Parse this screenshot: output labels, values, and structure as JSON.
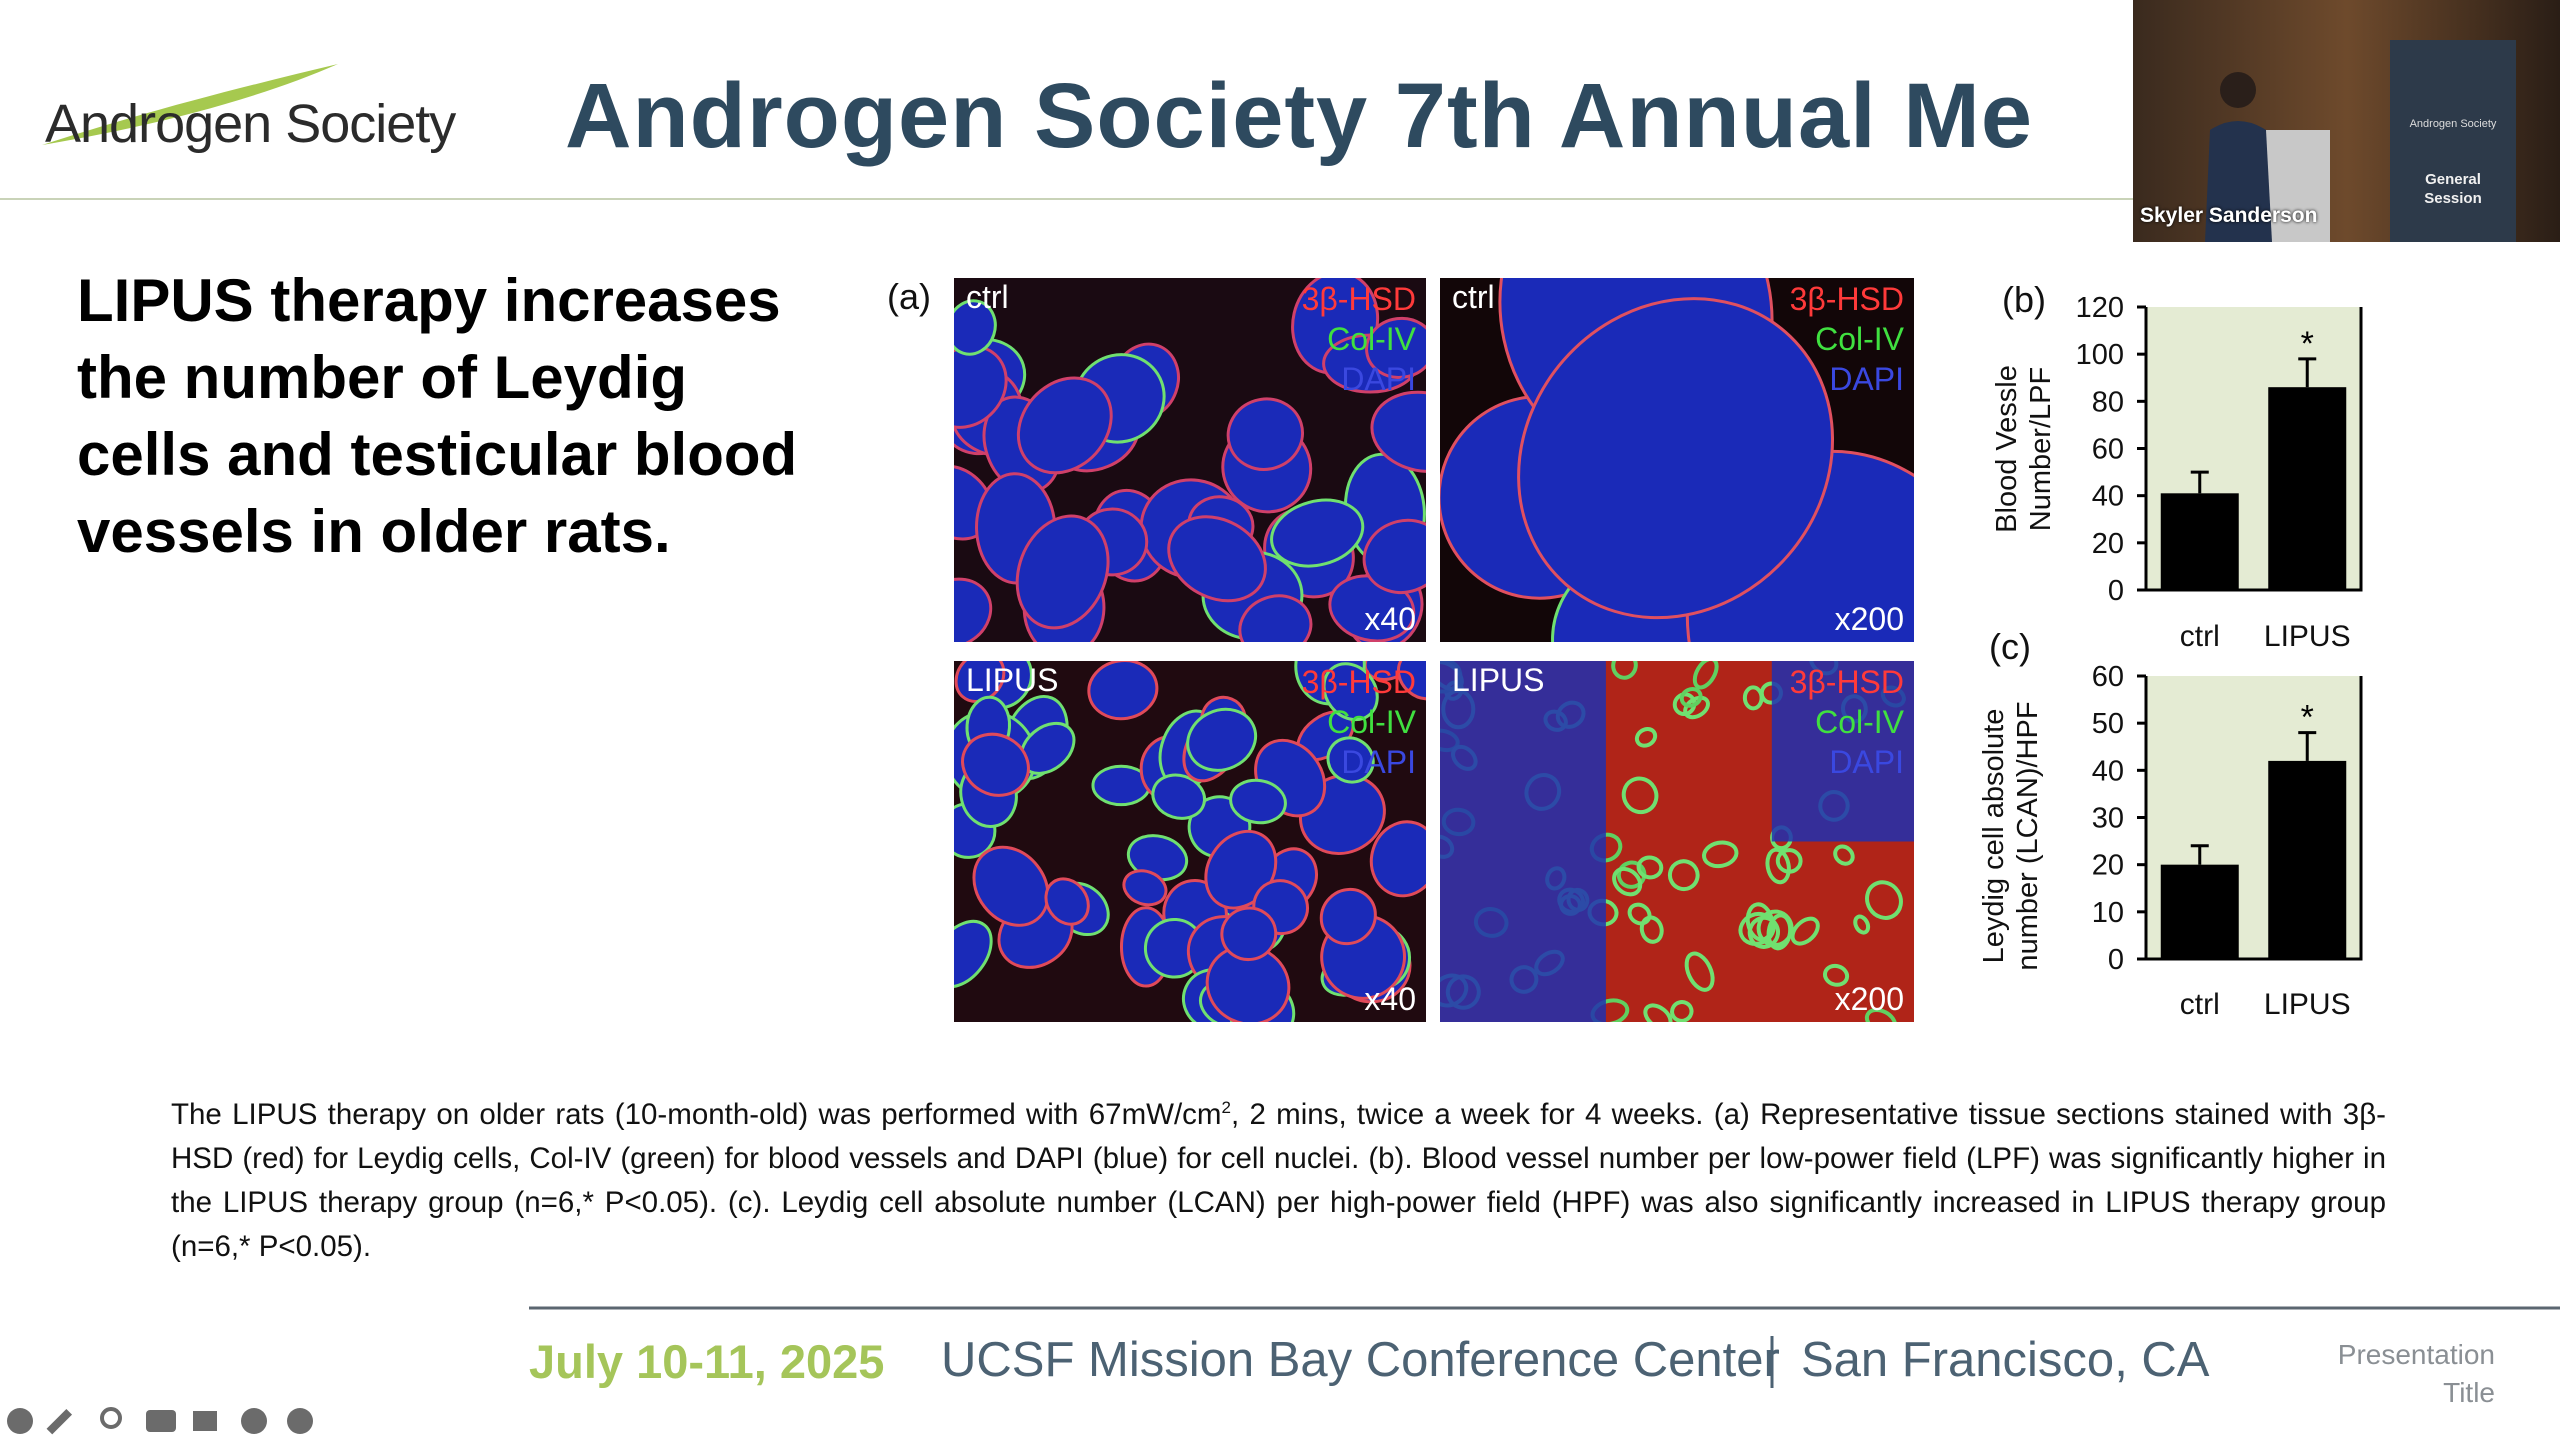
{
  "header": {
    "logo": "Androgen Society",
    "title": "Androgen Society 7th Annual Me"
  },
  "video": {
    "speaker": "Skyler Sanderson",
    "banner_logo": "Androgen Society",
    "banner": [
      "General",
      "Session"
    ]
  },
  "slide": {
    "heading": [
      "LIPUS therapy increases",
      "the number of Leydig",
      "cells and testicular blood",
      "vessels in older rats."
    ],
    "panel_a": {
      "label": "(a)",
      "images": [
        {
          "group": "ctrl",
          "stains": [
            "3β-HSD",
            "Col-IV",
            "DAPI"
          ],
          "magnification": "x40"
        },
        {
          "group": "ctrl",
          "stains": [
            "3β-HSD",
            "Col-IV",
            "DAPI"
          ],
          "magnification": "x200"
        },
        {
          "group": "LIPUS",
          "stains": [
            "3β-HSD",
            "Col-IV",
            "DAPI"
          ],
          "magnification": "x40"
        },
        {
          "group": "LIPUS",
          "stains": [
            "3β-HSD",
            "Col-IV",
            "DAPI"
          ],
          "magnification": "x200"
        }
      ]
    },
    "charts": [
      {
        "type": "bar",
        "label": "(b)",
        "ylabel": [
          "Blood Vessle",
          "Number/LPF"
        ],
        "categories": [
          "ctrl",
          "LIPUS"
        ],
        "values": [
          41,
          86
        ],
        "errors": [
          9,
          12
        ],
        "significance": [
          null,
          "*"
        ],
        "color": "#000000",
        "background": "#e4ebd3",
        "ylim": [
          0,
          120
        ],
        "yticks": [
          0,
          20,
          40,
          60,
          80,
          100,
          120
        ]
      },
      {
        "type": "bar",
        "label": "(c)",
        "ylabel": [
          "Leydig cell absolute",
          "number (LCAN)/HPF"
        ],
        "categories": [
          "ctrl",
          "LIPUS"
        ],
        "values": [
          20,
          42
        ],
        "errors": [
          4,
          6
        ],
        "significance": [
          null,
          "*"
        ],
        "color": "#000000",
        "background": "#e4ebd3",
        "ylim": [
          0,
          60
        ],
        "yticks": [
          0,
          10,
          20,
          30,
          40,
          50,
          60
        ]
      }
    ]
  },
  "caption": [
    "The LIPUS therapy on older rats (10-month-old) was performed with 67mW/cm",
    "2",
    ", 2 mins, twice a week for 4 weeks. (a) Representative tissue sections stained with 3β-HSD (red) for Leydig cells, Col-IV (green) for blood vessels and DAPI (blue) for cell nuclei. (b). Blood vessel number per low-power field (LPF) was significantly higher in the LIPUS therapy group (n=6,* P<0.05). (c). Leydig cell absolute number (LCAN) per high-power field (HPF) was also significantly increased in LIPUS therapy group (n=6,* P<0.05)."
  ],
  "footer": {
    "date": "July 10-11, 2025",
    "venue": "UCSF Mission Bay Conference Center",
    "city": "San Francisco, CA",
    "slide_title": [
      "Presentation",
      "Title"
    ]
  }
}
